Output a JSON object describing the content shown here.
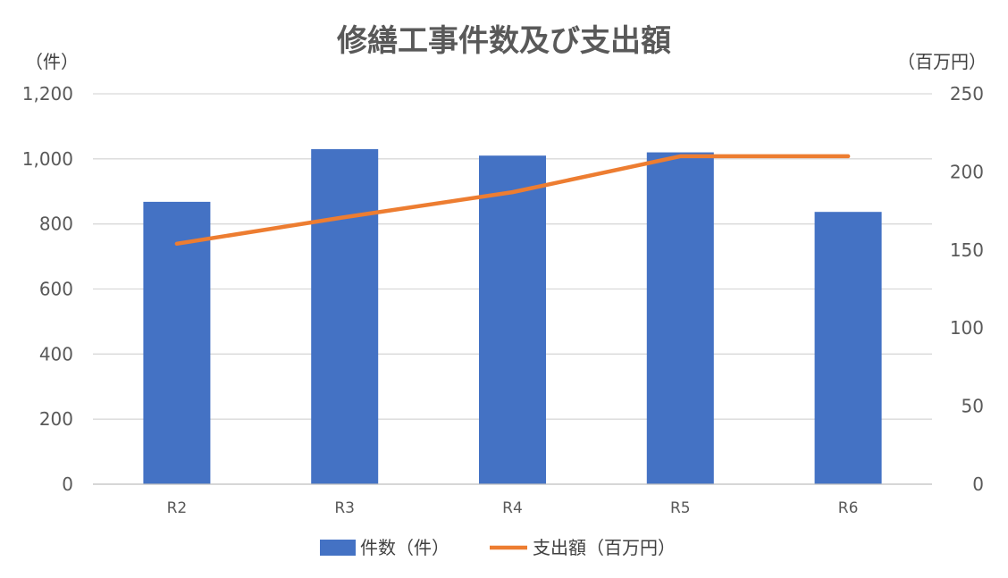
{
  "chart_data": {
    "type": "bar",
    "title": "修繕工事件数及び支出額",
    "categories": [
      "R2",
      "R3",
      "R4",
      "R5",
      "R6"
    ],
    "series": [
      {
        "name": "件数（件）",
        "type": "bar",
        "axis": "left",
        "color": "#4472C4",
        "values": [
          868,
          1030,
          1010,
          1020,
          837
        ]
      },
      {
        "name": "支出額（百万円）",
        "type": "line",
        "axis": "right",
        "color": "#ED7D31",
        "values": [
          154,
          171,
          187,
          210,
          210
        ]
      }
    ],
    "y_left": {
      "unit": "（件）",
      "ylim": [
        0,
        1200
      ],
      "ticks": [
        "0",
        "200",
        "400",
        "600",
        "800",
        "1,000",
        "1,200"
      ]
    },
    "y_right": {
      "unit": "（百万円）",
      "ylim": [
        0,
        250
      ],
      "ticks": [
        "0",
        "50",
        "100",
        "150",
        "200",
        "250"
      ]
    },
    "grid": true,
    "legend": "bottom"
  }
}
